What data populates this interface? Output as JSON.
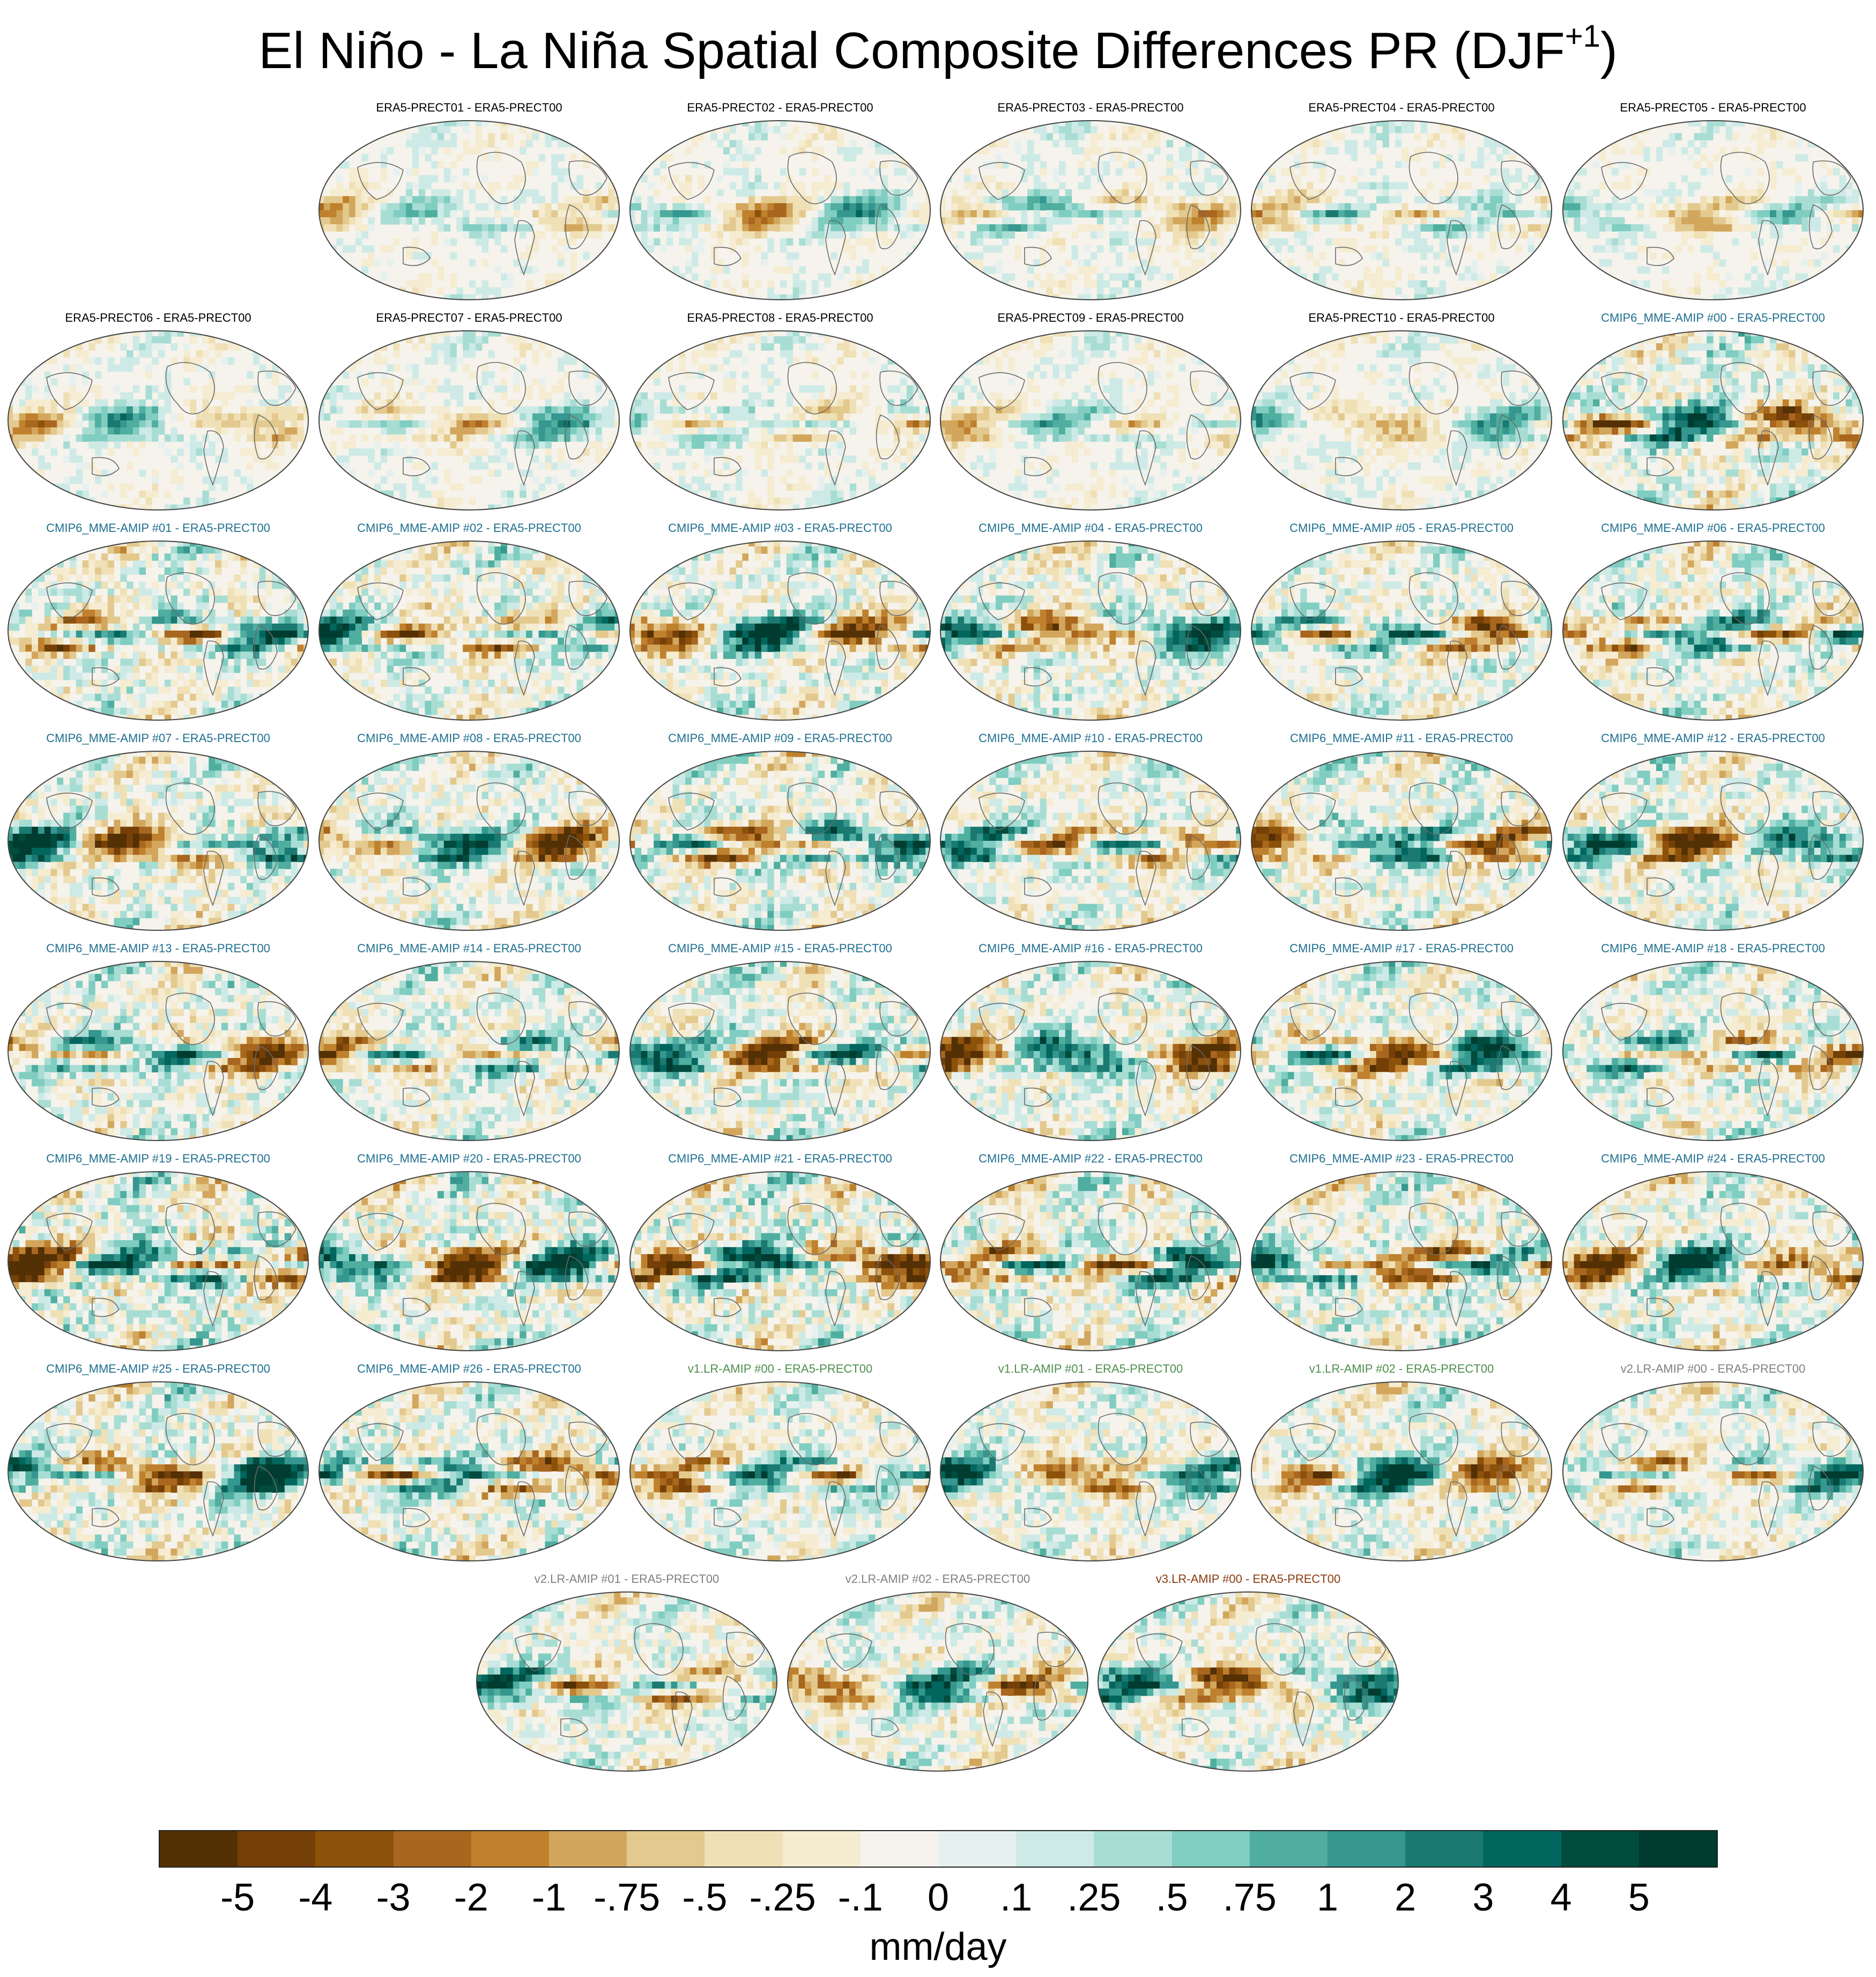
{
  "title": {
    "main": "El Niño - La Niña Spatial Composite Differences PR (DJF",
    "superscript": "+1",
    "close": ")"
  },
  "chart_data": {
    "type": "heatmap",
    "title": "El Niño - La Niña Spatial Composite Differences PR (DJF+1)",
    "variable": "PR",
    "season": "DJF+1",
    "reference": "ERA5-PRECT00",
    "units": "mm/day",
    "colorbar": {
      "tick_labels": [
        "-5",
        "-4",
        "-3",
        "-2",
        "-1",
        "-.75",
        "-.5",
        "-.25",
        "-.1",
        "0",
        ".1",
        ".25",
        ".5",
        ".75",
        "1",
        "2",
        "3",
        "4",
        "5"
      ],
      "colors": [
        "#543005",
        "#754008",
        "#8c510a",
        "#a9661f",
        "#bf812d",
        "#d2a75d",
        "#e3c98e",
        "#f0e0b6",
        "#f5ecd1",
        "#f5f3ec",
        "#e6f1ef",
        "#cdeae6",
        "#a8ddd4",
        "#80cdc1",
        "#4fae9f",
        "#35978f",
        "#1a7a72",
        "#01665e",
        "#014c3e",
        "#003c30"
      ]
    },
    "groups": [
      {
        "name": "ERA5",
        "color": "#000000"
      },
      {
        "name": "CMIP6_MME-AMIP",
        "color": "#1f6f8f"
      },
      {
        "name": "v1.LR-AMIP",
        "color": "#4e8f4e"
      },
      {
        "name": "v2.LR-AMIP",
        "color": "#808080"
      },
      {
        "name": "v3.LR-AMIP",
        "color": "#8b3a0e"
      }
    ],
    "panels": [
      {
        "label": "ERA5-PRECT01 - ERA5-PRECT00",
        "group": 0,
        "amp": 0.5
      },
      {
        "label": "ERA5-PRECT02 - ERA5-PRECT00",
        "group": 0,
        "amp": 0.55
      },
      {
        "label": "ERA5-PRECT03 - ERA5-PRECT00",
        "group": 0,
        "amp": 0.6
      },
      {
        "label": "ERA5-PRECT04 - ERA5-PRECT00",
        "group": 0,
        "amp": 0.55
      },
      {
        "label": "ERA5-PRECT05 - ERA5-PRECT00",
        "group": 0,
        "amp": 0.5
      },
      {
        "label": "ERA5-PRECT06 - ERA5-PRECT00",
        "group": 0,
        "amp": 0.55
      },
      {
        "label": "ERA5-PRECT07 - ERA5-PRECT00",
        "group": 0,
        "amp": 0.55
      },
      {
        "label": "ERA5-PRECT08 - ERA5-PRECT00",
        "group": 0,
        "amp": 0.6
      },
      {
        "label": "ERA5-PRECT09 - ERA5-PRECT00",
        "group": 0,
        "amp": 0.5
      },
      {
        "label": "ERA5-PRECT10 - ERA5-PRECT00",
        "group": 0,
        "amp": 0.55
      },
      {
        "label": "CMIP6_MME-AMIP  #00 - ERA5-PRECT00",
        "group": 1,
        "amp": 1.0
      },
      {
        "label": "CMIP6_MME-AMIP  #01 - ERA5-PRECT00",
        "group": 1,
        "amp": 1.0
      },
      {
        "label": "CMIP6_MME-AMIP  #02 - ERA5-PRECT00",
        "group": 1,
        "amp": 0.95
      },
      {
        "label": "CMIP6_MME-AMIP  #03 - ERA5-PRECT00",
        "group": 1,
        "amp": 1.0
      },
      {
        "label": "CMIP6_MME-AMIP  #04 - ERA5-PRECT00",
        "group": 1,
        "amp": 1.0
      },
      {
        "label": "CMIP6_MME-AMIP  #05 - ERA5-PRECT00",
        "group": 1,
        "amp": 0.95
      },
      {
        "label": "CMIP6_MME-AMIP  #06 - ERA5-PRECT00",
        "group": 1,
        "amp": 1.0
      },
      {
        "label": "CMIP6_MME-AMIP  #07 - ERA5-PRECT00",
        "group": 1,
        "amp": 1.0
      },
      {
        "label": "CMIP6_MME-AMIP  #08 - ERA5-PRECT00",
        "group": 1,
        "amp": 0.95
      },
      {
        "label": "CMIP6_MME-AMIP  #09 - ERA5-PRECT00",
        "group": 1,
        "amp": 1.05
      },
      {
        "label": "CMIP6_MME-AMIP  #10 - ERA5-PRECT00",
        "group": 1,
        "amp": 0.95
      },
      {
        "label": "CMIP6_MME-AMIP  #11 - ERA5-PRECT00",
        "group": 1,
        "amp": 1.0
      },
      {
        "label": "CMIP6_MME-AMIP  #12 - ERA5-PRECT00",
        "group": 1,
        "amp": 1.0
      },
      {
        "label": "CMIP6_MME-AMIP  #13 - ERA5-PRECT00",
        "group": 1,
        "amp": 1.0
      },
      {
        "label": "CMIP6_MME-AMIP  #14 - ERA5-PRECT00",
        "group": 1,
        "amp": 0.95
      },
      {
        "label": "CMIP6_MME-AMIP  #15 - ERA5-PRECT00",
        "group": 1,
        "amp": 1.0
      },
      {
        "label": "CMIP6_MME-AMIP  #16 - ERA5-PRECT00",
        "group": 1,
        "amp": 1.05
      },
      {
        "label": "CMIP6_MME-AMIP  #17 - ERA5-PRECT00",
        "group": 1,
        "amp": 1.0
      },
      {
        "label": "CMIP6_MME-AMIP  #18 - ERA5-PRECT00",
        "group": 1,
        "amp": 1.0
      },
      {
        "label": "CMIP6_MME-AMIP  #19 - ERA5-PRECT00",
        "group": 1,
        "amp": 1.2
      },
      {
        "label": "CMIP6_MME-AMIP  #20 - ERA5-PRECT00",
        "group": 1,
        "amp": 1.1
      },
      {
        "label": "CMIP6_MME-AMIP  #21 - ERA5-PRECT00",
        "group": 1,
        "amp": 1.2
      },
      {
        "label": "CMIP6_MME-AMIP  #22 - ERA5-PRECT00",
        "group": 1,
        "amp": 1.1
      },
      {
        "label": "CMIP6_MME-AMIP  #23 - ERA5-PRECT00",
        "group": 1,
        "amp": 1.1
      },
      {
        "label": "CMIP6_MME-AMIP  #24 - ERA5-PRECT00",
        "group": 1,
        "amp": 1.0
      },
      {
        "label": "CMIP6_MME-AMIP  #25 - ERA5-PRECT00",
        "group": 1,
        "amp": 1.05
      },
      {
        "label": "CMIP6_MME-AMIP  #26 - ERA5-PRECT00",
        "group": 1,
        "amp": 1.05
      },
      {
        "label": "v1.LR-AMIP  #00 - ERA5-PRECT00",
        "group": 2,
        "amp": 0.9
      },
      {
        "label": "v1.LR-AMIP  #01 - ERA5-PRECT00",
        "group": 2,
        "amp": 0.9
      },
      {
        "label": "v1.LR-AMIP  #02 - ERA5-PRECT00",
        "group": 2,
        "amp": 0.95
      },
      {
        "label": "v2.LR-AMIP  #00 - ERA5-PRECT00",
        "group": 3,
        "amp": 0.9
      },
      {
        "label": "v2.LR-AMIP  #01 - ERA5-PRECT00",
        "group": 3,
        "amp": 0.9
      },
      {
        "label": "v2.LR-AMIP  #02 - ERA5-PRECT00",
        "group": 3,
        "amp": 0.9
      },
      {
        "label": "v3.LR-AMIP  #00 - ERA5-PRECT00",
        "group": 4,
        "amp": 0.95
      }
    ]
  }
}
